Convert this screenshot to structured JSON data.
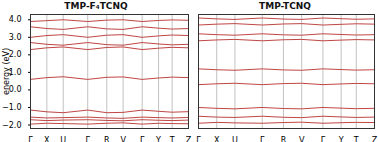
{
  "chart_data": [
    {
      "type": "line",
      "title": "TMP-F₄TCNQ",
      "y_label": "energy (eV)",
      "color": "#b8312f",
      "grid": "x",
      "tick_labels": true,
      "x": [
        0,
        0.3,
        0.6,
        1.05,
        1.4,
        1.7,
        2.05,
        2.35,
        2.6,
        2.9
      ],
      "xlim": [
        0,
        2.9
      ],
      "xticks": [
        {
          "value": 0,
          "label": "Γ"
        },
        {
          "value": 0.3,
          "label": "X"
        },
        {
          "value": 0.6,
          "label": "U"
        },
        {
          "value": 1.05,
          "label": "Γ"
        },
        {
          "value": 1.4,
          "label": "R"
        },
        {
          "value": 1.7,
          "label": "V"
        },
        {
          "value": 2.05,
          "label": "Γ"
        },
        {
          "value": 2.35,
          "label": "Y"
        },
        {
          "value": 2.6,
          "label": "T"
        },
        {
          "value": 2.9,
          "label": "Z"
        }
      ],
      "ylim": [
        -2.2,
        4.3
      ],
      "yticks": [
        -2,
        -1,
        0,
        1,
        2,
        3,
        4
      ],
      "series": [
        {
          "values": [
            -1.95,
            -1.9,
            -1.92,
            -1.95,
            -1.9,
            -1.88,
            -1.95,
            -1.9,
            -1.92,
            -1.93
          ]
        },
        {
          "values": [
            -1.7,
            -1.75,
            -1.72,
            -1.7,
            -1.74,
            -1.76,
            -1.7,
            -1.73,
            -1.75,
            -1.72
          ]
        },
        {
          "values": [
            -1.55,
            -1.6,
            -1.58,
            -1.55,
            -1.6,
            -1.62,
            -1.55,
            -1.58,
            -1.6,
            -1.57
          ]
        },
        {
          "values": [
            -1.15,
            -1.25,
            -1.3,
            -1.15,
            -1.3,
            -1.28,
            -1.15,
            -1.22,
            -1.27,
            -1.24
          ]
        },
        {
          "values": [
            0.6,
            0.7,
            0.75,
            0.6,
            0.72,
            0.74,
            0.6,
            0.68,
            0.73,
            0.7
          ]
        },
        {
          "values": [
            2.3,
            2.4,
            2.45,
            2.3,
            2.42,
            2.45,
            2.3,
            2.38,
            2.43,
            2.4
          ]
        },
        {
          "values": [
            2.7,
            2.6,
            2.55,
            2.7,
            2.58,
            2.55,
            2.7,
            2.62,
            2.57,
            2.6
          ]
        },
        {
          "values": [
            3.0,
            3.1,
            3.15,
            3.0,
            3.12,
            3.15,
            3.0,
            3.08,
            3.13,
            3.1
          ]
        },
        {
          "values": [
            3.6,
            3.5,
            3.45,
            3.6,
            3.48,
            3.45,
            3.6,
            3.52,
            3.47,
            3.5
          ]
        },
        {
          "values": [
            3.9,
            3.95,
            4.0,
            3.9,
            3.98,
            4.0,
            3.9,
            3.96,
            3.99,
            3.97
          ]
        }
      ]
    },
    {
      "type": "line",
      "title": "TMP-TCNQ",
      "color": "#b8312f",
      "grid": "x",
      "tick_labels": "x",
      "x": [
        0,
        0.3,
        0.6,
        1.05,
        1.4,
        1.7,
        2.05,
        2.35,
        2.6,
        2.9
      ],
      "xlim": [
        0,
        2.9
      ],
      "xticks": [
        {
          "value": 0,
          "label": "Γ"
        },
        {
          "value": 0.3,
          "label": "X"
        },
        {
          "value": 0.6,
          "label": "U"
        },
        {
          "value": 1.05,
          "label": "Γ"
        },
        {
          "value": 1.4,
          "label": "R"
        },
        {
          "value": 1.7,
          "label": "V"
        },
        {
          "value": 2.05,
          "label": "Γ"
        },
        {
          "value": 2.35,
          "label": "Y"
        },
        {
          "value": 2.6,
          "label": "T"
        },
        {
          "value": 2.9,
          "label": "Z"
        }
      ],
      "ylim": [
        -2.2,
        4.3
      ],
      "yticks": [
        -2,
        -1,
        0,
        1,
        2,
        3,
        4
      ],
      "series": [
        {
          "values": [
            -1.9,
            -1.85,
            -1.88,
            -1.9,
            -1.86,
            -1.84,
            -1.9,
            -1.87,
            -1.85,
            -1.86
          ]
        },
        {
          "values": [
            -1.5,
            -1.55,
            -1.57,
            -1.5,
            -1.56,
            -1.58,
            -1.5,
            -1.54,
            -1.57,
            -1.55
          ]
        },
        {
          "values": [
            -1.0,
            -1.05,
            -1.08,
            -1.0,
            -1.06,
            -1.08,
            -1.0,
            -1.04,
            -1.07,
            -1.05
          ]
        },
        {
          "values": [
            0.3,
            0.35,
            0.38,
            0.3,
            0.36,
            0.38,
            0.3,
            0.34,
            0.37,
            0.35
          ]
        },
        {
          "values": [
            1.2,
            1.15,
            1.12,
            1.2,
            1.14,
            1.12,
            1.2,
            1.16,
            1.13,
            1.15
          ]
        },
        {
          "values": [
            2.8,
            2.85,
            2.88,
            2.8,
            2.86,
            2.88,
            2.8,
            2.84,
            2.87,
            2.85
          ]
        },
        {
          "values": [
            3.2,
            3.15,
            3.12,
            3.2,
            3.14,
            3.12,
            3.2,
            3.16,
            3.13,
            3.15
          ]
        },
        {
          "values": [
            3.7,
            3.75,
            3.78,
            3.7,
            3.76,
            3.78,
            3.7,
            3.74,
            3.77,
            3.75
          ]
        },
        {
          "values": [
            4.1,
            4.05,
            4.02,
            4.1,
            4.04,
            4.02,
            4.1,
            4.06,
            4.03,
            4.05
          ]
        }
      ]
    }
  ]
}
